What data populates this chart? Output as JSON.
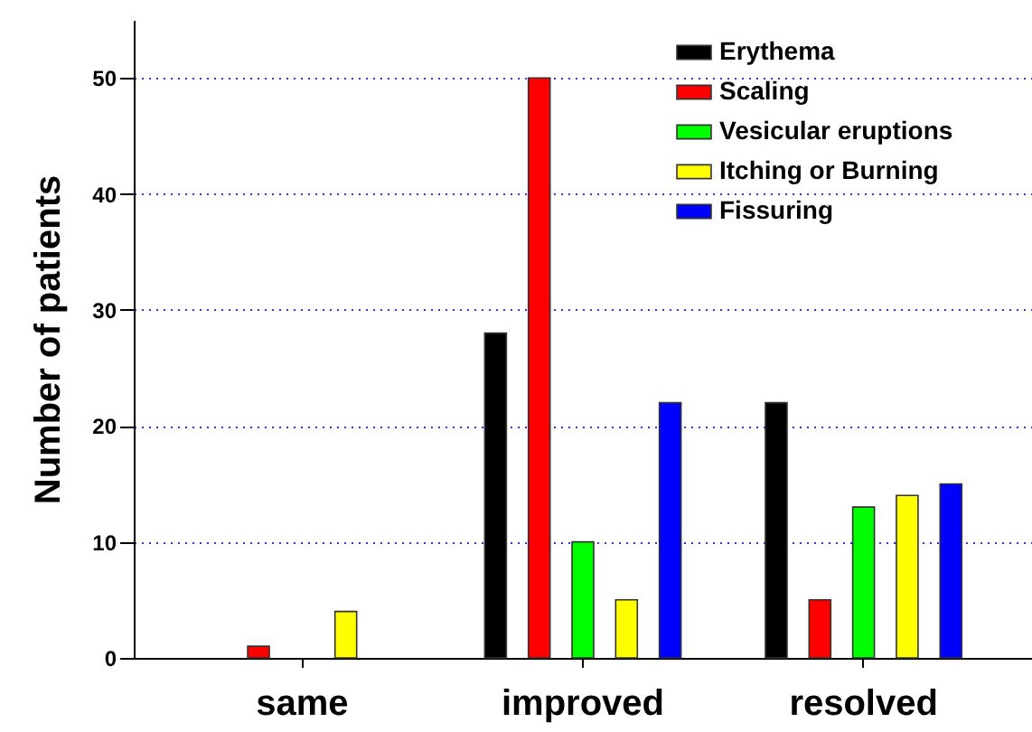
{
  "chart_data": {
    "type": "bar",
    "ylabel": "Number of patients",
    "categories": [
      "same",
      "improved",
      "resolved"
    ],
    "series": [
      {
        "name": "Erythema",
        "color": "#000000",
        "values": [
          null,
          28,
          22
        ]
      },
      {
        "name": "Scaling",
        "color": "#ff0000",
        "values": [
          1,
          50,
          5
        ]
      },
      {
        "name": "Vesicular eruptions",
        "color": "#00ff00",
        "values": [
          null,
          10,
          13
        ]
      },
      {
        "name": "Itching or Burning",
        "color": "#ffff00",
        "values": [
          4,
          5,
          14
        ]
      },
      {
        "name": "Fissuring",
        "color": "#0000ff",
        "values": [
          null,
          22,
          15
        ]
      }
    ],
    "ylim": [
      0,
      55
    ],
    "yticks": [
      0,
      10,
      20,
      30,
      40,
      50
    ],
    "grid": "y",
    "legend": "top right"
  }
}
